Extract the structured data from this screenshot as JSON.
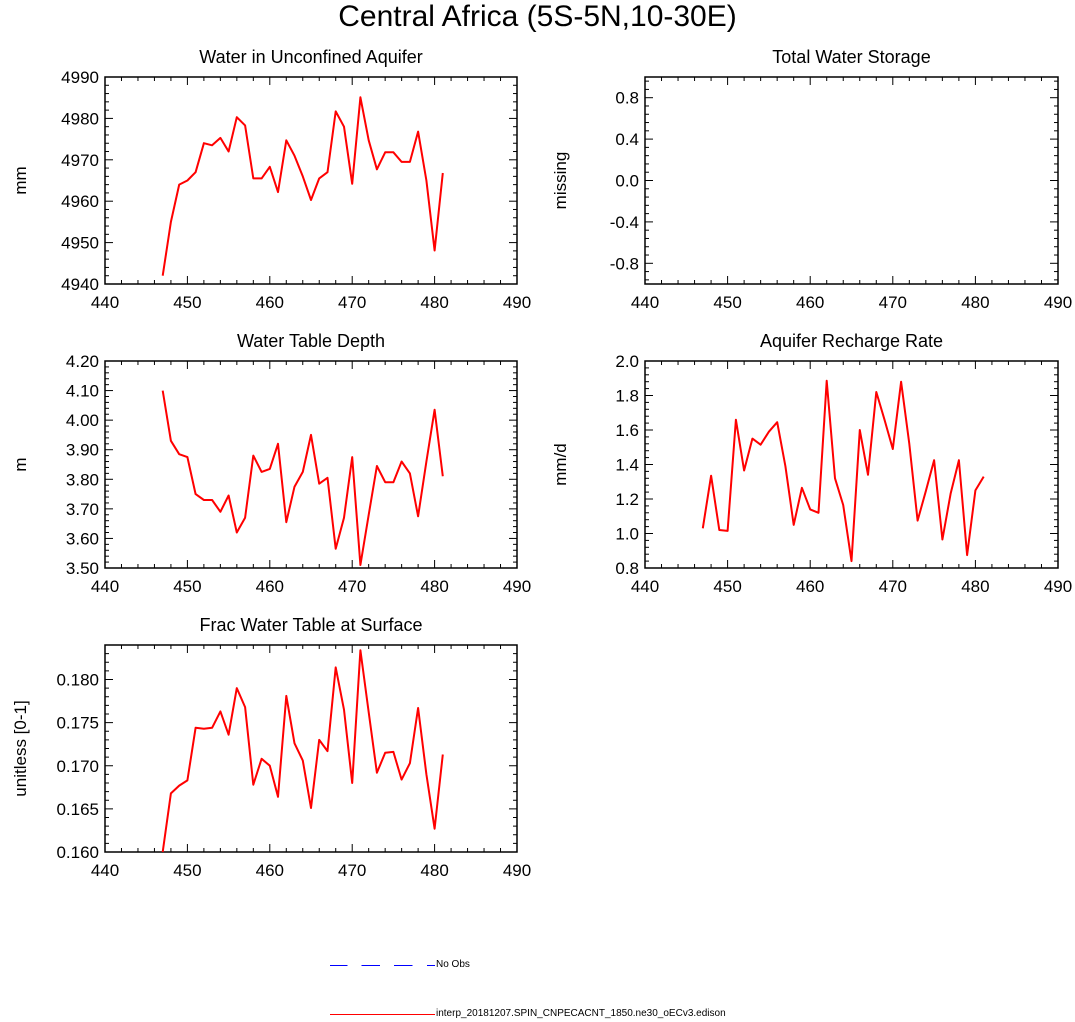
{
  "figure": {
    "title": "Central Africa (5S-5N,10-30E)"
  },
  "legend": {
    "items": [
      {
        "label": "No Obs",
        "color": "#0000ff",
        "style": "dashed"
      },
      {
        "label": "interp_20181207.SPIN_CNPECACNT_1850.ne30_oECv3.edison",
        "color": "#ff0000",
        "style": "solid"
      }
    ]
  },
  "chart_data": [
    {
      "type": "line",
      "title": "Water in Unconfined Aquifer",
      "ylabel": "mm",
      "xlim": [
        440,
        490
      ],
      "ylim": [
        4940,
        4990
      ],
      "xticks": [
        440,
        450,
        460,
        470,
        480,
        490
      ],
      "xtick_labels": [
        "440",
        "450",
        "460",
        "470",
        "480",
        "490"
      ],
      "yticks": [
        4940,
        4950,
        4960,
        4970,
        4980,
        4990
      ],
      "ytick_labels": [
        "4940",
        "4950",
        "4960",
        "4970",
        "4980",
        "4990"
      ],
      "grid": false,
      "series": [
        {
          "color": "#ff0000",
          "x": [
            447,
            448,
            449,
            450,
            451,
            452,
            453,
            454,
            455,
            456,
            457,
            458,
            459,
            460,
            461,
            462,
            463,
            464,
            465,
            466,
            467,
            468,
            469,
            470,
            471,
            472,
            473,
            474,
            475,
            476,
            477,
            478,
            479,
            480,
            481
          ],
          "y": [
            4942,
            4955,
            4964,
            4965,
            4967,
            4974,
            4973.5,
            4975.3,
            4972,
            4980.3,
            4978.3,
            4965.5,
            4965.5,
            4968.3,
            4962.2,
            4974.7,
            4971,
            4966,
            4960.3,
            4965.5,
            4967,
            4981.7,
            4978,
            4964.2,
            4985.1,
            4974.7,
            4967.7,
            4971.8,
            4971.8,
            4969.5,
            4969.5,
            4976.8,
            4965,
            4948.1,
            4966.8
          ]
        }
      ]
    },
    {
      "type": "line",
      "title": "Total Water Storage",
      "ylabel": "missing",
      "xlim": [
        440,
        490
      ],
      "ylim": [
        -1.0,
        1.0
      ],
      "xticks": [
        440,
        450,
        460,
        470,
        480,
        490
      ],
      "xtick_labels": [
        "440",
        "450",
        "460",
        "470",
        "480",
        "490"
      ],
      "yticks": [
        -0.8,
        -0.4,
        0.0,
        0.4,
        0.8
      ],
      "ytick_labels": [
        "-0.8",
        "-0.4",
        "0.0",
        "0.4",
        "0.8"
      ],
      "grid": false,
      "series": []
    },
    {
      "type": "line",
      "title": "Water Table Depth",
      "ylabel": "m",
      "xlim": [
        440,
        490
      ],
      "ylim": [
        3.5,
        4.2
      ],
      "xticks": [
        440,
        450,
        460,
        470,
        480,
        490
      ],
      "xtick_labels": [
        "440",
        "450",
        "460",
        "470",
        "480",
        "490"
      ],
      "yticks": [
        3.5,
        3.6,
        3.7,
        3.8,
        3.9,
        4.0,
        4.1,
        4.2
      ],
      "ytick_labels": [
        "3.50",
        "3.60",
        "3.70",
        "3.80",
        "3.90",
        "4.00",
        "4.10",
        "4.20"
      ],
      "grid": false,
      "series": [
        {
          "color": "#ff0000",
          "x": [
            447,
            448,
            449,
            450,
            451,
            452,
            453,
            454,
            455,
            456,
            457,
            458,
            459,
            460,
            461,
            462,
            463,
            464,
            465,
            466,
            467,
            468,
            469,
            470,
            471,
            472,
            473,
            474,
            475,
            476,
            477,
            478,
            479,
            480,
            481
          ],
          "y": [
            4.1,
            3.93,
            3.885,
            3.875,
            3.75,
            3.73,
            3.73,
            3.69,
            3.745,
            3.62,
            3.67,
            3.88,
            3.825,
            3.835,
            3.92,
            3.655,
            3.775,
            3.825,
            3.95,
            3.785,
            3.805,
            3.565,
            3.67,
            3.875,
            3.51,
            3.68,
            3.845,
            3.79,
            3.79,
            3.86,
            3.82,
            3.675,
            3.86,
            4.035,
            3.81
          ]
        }
      ]
    },
    {
      "type": "line",
      "title": "Aquifer Recharge Rate",
      "ylabel": "mm/d",
      "xlim": [
        440,
        490
      ],
      "ylim": [
        0.8,
        2.0
      ],
      "xticks": [
        440,
        450,
        460,
        470,
        480,
        490
      ],
      "xtick_labels": [
        "440",
        "450",
        "460",
        "470",
        "480",
        "490"
      ],
      "yticks": [
        0.8,
        1.0,
        1.2,
        1.4,
        1.6,
        1.8,
        2.0
      ],
      "ytick_labels": [
        "0.8",
        "1.0",
        "1.2",
        "1.4",
        "1.6",
        "1.8",
        "2.0"
      ],
      "grid": false,
      "series": [
        {
          "color": "#ff0000",
          "x": [
            447,
            448,
            449,
            450,
            451,
            452,
            453,
            454,
            455,
            456,
            457,
            458,
            459,
            460,
            461,
            462,
            463,
            464,
            465,
            466,
            467,
            468,
            469,
            470,
            471,
            472,
            473,
            474,
            475,
            476,
            477,
            478,
            479,
            480,
            481
          ],
          "y": [
            1.03,
            1.335,
            1.02,
            1.015,
            1.66,
            1.365,
            1.55,
            1.515,
            1.59,
            1.645,
            1.39,
            1.05,
            1.265,
            1.14,
            1.12,
            1.885,
            1.32,
            1.165,
            0.84,
            1.6,
            1.34,
            1.82,
            1.66,
            1.49,
            1.88,
            1.52,
            1.075,
            1.245,
            1.425,
            0.965,
            1.23,
            1.425,
            0.875,
            1.25,
            1.33
          ]
        }
      ]
    },
    {
      "type": "line",
      "title": "Frac Water Table at Surface",
      "ylabel": "unitless [0-1]",
      "xlim": [
        440,
        490
      ],
      "ylim": [
        0.16,
        0.184
      ],
      "xticks": [
        440,
        450,
        460,
        470,
        480,
        490
      ],
      "xtick_labels": [
        "440",
        "450",
        "460",
        "470",
        "480",
        "490"
      ],
      "yticks": [
        0.16,
        0.165,
        0.17,
        0.175,
        0.18
      ],
      "ytick_labels": [
        "0.160",
        "0.165",
        "0.170",
        "0.175",
        "0.180"
      ],
      "grid": false,
      "series": [
        {
          "color": "#ff0000",
          "x": [
            447,
            448,
            449,
            450,
            451,
            452,
            453,
            454,
            455,
            456,
            457,
            458,
            459,
            460,
            461,
            462,
            463,
            464,
            465,
            466,
            467,
            468,
            469,
            470,
            471,
            472,
            473,
            474,
            475,
            476,
            477,
            478,
            479,
            480,
            481
          ],
          "y": [
            0.16,
            0.1668,
            0.1677,
            0.1683,
            0.1744,
            0.1743,
            0.1744,
            0.1763,
            0.1736,
            0.179,
            0.1768,
            0.1678,
            0.1708,
            0.17,
            0.1664,
            0.1781,
            0.1726,
            0.1706,
            0.1651,
            0.173,
            0.1717,
            0.1814,
            0.1765,
            0.168,
            0.1834,
            0.1762,
            0.1692,
            0.1715,
            0.1716,
            0.1684,
            0.1703,
            0.1767,
            0.169,
            0.1627,
            0.1713
          ]
        }
      ]
    }
  ]
}
